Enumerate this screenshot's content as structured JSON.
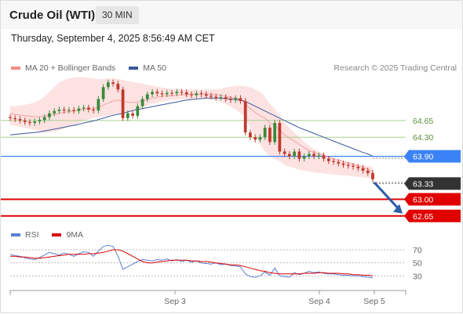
{
  "header": {
    "title": "Crude Oil (WTI)",
    "timeframe": "30 MIN",
    "timestamp": "Thursday, September 4, 2025 8:56:49 AM CET"
  },
  "legend": {
    "ma20_label": "MA 20 + Bollinger Bands",
    "ma50_label": "MA 50",
    "credit": "Research © 2025 Trading Central"
  },
  "colors": {
    "bullish": "#3a8a3a",
    "bearish": "#c0392b",
    "bollinger_fill": "#fde2e2",
    "ma20": "#f4a3a3",
    "ma50": "#3a5a9c",
    "resistance": "#a8cf8e",
    "pivot": "#3b82f6",
    "support": "#e00000",
    "last_price": "#333333",
    "arrow": "#2b5ca8",
    "rsi": "#5b7fd6",
    "rsi_ma": "#dd0000"
  },
  "chart_data": [
    {
      "type": "candlestick",
      "title": "Crude Oil (WTI)",
      "timeframe": "30 MIN",
      "x_ticks": [
        "Sep 3",
        "Sep 4",
        "Sep 5"
      ],
      "ylim": [
        62.4,
        65.65
      ],
      "closes": [
        64.7,
        64.68,
        64.65,
        64.62,
        64.6,
        64.63,
        64.66,
        64.72,
        64.8,
        64.85,
        64.88,
        64.86,
        64.87,
        64.85,
        64.9,
        64.92,
        64.88,
        64.86,
        65.1,
        65.35,
        65.45,
        65.42,
        65.3,
        64.7,
        64.8,
        64.75,
        64.95,
        65.1,
        65.2,
        65.25,
        65.22,
        65.2,
        65.23,
        65.22,
        65.25,
        65.24,
        65.2,
        65.18,
        65.22,
        65.2,
        65.17,
        65.15,
        65.13,
        65.14,
        65.1,
        65.08,
        65.12,
        65.06,
        64.4,
        64.3,
        64.25,
        64.3,
        64.5,
        64.2,
        64.6,
        64.0,
        63.95,
        63.9,
        64.0,
        63.85,
        63.9,
        63.95,
        63.9,
        63.92,
        63.85,
        63.8,
        63.78,
        63.75,
        63.72,
        63.7,
        63.68,
        63.65,
        63.6,
        63.55,
        63.42
      ],
      "ma20": [
        64.8,
        64.78,
        64.76,
        64.75,
        64.74,
        64.73,
        64.73,
        64.74,
        64.76,
        64.78,
        64.8,
        64.82,
        64.84,
        64.85,
        64.87,
        64.89,
        64.9,
        64.9,
        64.93,
        64.97,
        65.02,
        65.06,
        65.08,
        65.05,
        65.04,
        65.03,
        65.04,
        65.06,
        65.09,
        65.12,
        65.14,
        65.16,
        65.17,
        65.17,
        65.18,
        65.19,
        65.19,
        65.2,
        65.2,
        65.21,
        65.21,
        65.2,
        65.19,
        65.18,
        65.16,
        65.14,
        65.12,
        65.1,
        65.0,
        64.9,
        64.82,
        64.75,
        64.7,
        64.6,
        64.55,
        64.45,
        64.35,
        64.28,
        64.22,
        64.15,
        64.08,
        64.02,
        63.98,
        63.95,
        63.92,
        63.88,
        63.85,
        63.82,
        63.79,
        63.76,
        63.73,
        63.7,
        63.67,
        63.63,
        63.58
      ],
      "ma50": [
        64.35,
        64.36,
        64.37,
        64.38,
        64.39,
        64.4,
        64.41,
        64.43,
        64.45,
        64.47,
        64.49,
        64.51,
        64.53,
        64.55,
        64.57,
        64.6,
        64.62,
        64.64,
        64.67,
        64.7,
        64.73,
        64.76,
        64.78,
        64.8,
        64.83,
        64.86,
        64.88,
        64.9,
        64.92,
        64.94,
        64.96,
        64.98,
        65.0,
        65.02,
        65.04,
        65.06,
        65.08,
        65.09,
        65.1,
        65.11,
        65.12,
        65.12,
        65.12,
        65.12,
        65.11,
        65.1,
        65.09,
        65.08,
        65.05,
        65.0,
        64.95,
        64.9,
        64.85,
        64.8,
        64.75,
        64.7,
        64.65,
        64.6,
        64.55,
        64.5,
        64.46,
        64.42,
        64.38,
        64.34,
        64.3,
        64.26,
        64.22,
        64.18,
        64.14,
        64.1,
        64.06,
        64.02,
        63.98,
        63.95,
        63.9
      ],
      "bb_upper": [
        64.95,
        64.95,
        64.96,
        64.98,
        65.0,
        65.03,
        65.08,
        65.15,
        65.25,
        65.35,
        65.45,
        65.5,
        65.53,
        65.55,
        65.56,
        65.56,
        65.55,
        65.53,
        65.52,
        65.52,
        65.53,
        65.53,
        65.52,
        65.5,
        65.48,
        65.46,
        65.44,
        65.42,
        65.4,
        65.38,
        65.36,
        65.34,
        65.33,
        65.32,
        65.32,
        65.31,
        65.31,
        65.3,
        65.3,
        65.3,
        65.3,
        65.3,
        65.31,
        65.32,
        65.34,
        65.36,
        65.38,
        65.38,
        65.37,
        65.35,
        65.3,
        65.25,
        65.15,
        65.0,
        64.9,
        64.75,
        64.6,
        64.5,
        64.4,
        64.3,
        64.2,
        64.12,
        64.05,
        64.0,
        63.95,
        63.9,
        63.85,
        63.82,
        63.8,
        63.78,
        63.76,
        63.74,
        63.72,
        63.7,
        63.68
      ],
      "bb_lower": [
        64.55,
        64.54,
        64.52,
        64.5,
        64.48,
        64.45,
        64.42,
        64.4,
        64.4,
        64.42,
        64.44,
        64.48,
        64.52,
        64.55,
        64.6,
        64.65,
        64.68,
        64.7,
        64.72,
        64.74,
        64.75,
        64.78,
        64.8,
        64.8,
        64.82,
        64.85,
        64.88,
        64.92,
        64.96,
        65.0,
        65.02,
        65.05,
        65.07,
        65.08,
        65.09,
        65.1,
        65.1,
        65.1,
        65.1,
        65.1,
        65.1,
        65.1,
        65.07,
        65.04,
        65.0,
        64.94,
        64.88,
        64.82,
        64.7,
        64.5,
        64.3,
        64.15,
        64.0,
        63.9,
        63.85,
        63.8,
        63.72,
        63.68,
        63.65,
        63.62,
        63.6,
        63.58,
        63.56,
        63.55,
        63.54,
        63.53,
        63.52,
        63.51,
        63.5,
        63.49,
        63.48,
        63.47,
        63.46,
        63.45,
        63.44
      ],
      "levels": [
        {
          "label": "64.65",
          "value": 64.65,
          "kind": "resistance"
        },
        {
          "label": "64.30",
          "value": 64.3,
          "kind": "resistance"
        },
        {
          "label": "63.90",
          "value": 63.9,
          "kind": "pivot"
        },
        {
          "label": "63.33",
          "value": 63.33,
          "kind": "last"
        },
        {
          "label": "63.00",
          "value": 63.0,
          "kind": "support"
        },
        {
          "label": "62.65",
          "value": 62.65,
          "kind": "support"
        }
      ],
      "forecast_arrow": {
        "from": 63.35,
        "to": 62.75
      }
    },
    {
      "type": "line",
      "series": [
        {
          "name": "RSI",
          "values": [
            63,
            61,
            60,
            58,
            56,
            55,
            58,
            62,
            66,
            64,
            62,
            65,
            63,
            60,
            64,
            67,
            66,
            60,
            68,
            75,
            77,
            75,
            60,
            40,
            44,
            48,
            52,
            55,
            54,
            53,
            55,
            54,
            56,
            53,
            55,
            52,
            54,
            51,
            53,
            50,
            49,
            48,
            50,
            47,
            48,
            46,
            45,
            44,
            33,
            29,
            28,
            30,
            36,
            31,
            42,
            30,
            29,
            28,
            35,
            32,
            34,
            37,
            35,
            36,
            34,
            33,
            33,
            32,
            31,
            31,
            30,
            30,
            29,
            28,
            27
          ]
        },
        {
          "name": "9MA",
          "values": [
            60,
            60,
            59,
            59,
            58,
            57,
            57,
            58,
            59,
            60,
            61,
            62,
            63,
            63,
            63,
            63,
            64,
            64,
            65,
            66,
            68,
            70,
            70,
            68,
            64,
            60,
            56,
            52,
            50,
            50,
            51,
            52,
            53,
            54,
            54,
            54,
            54,
            53,
            53,
            52,
            52,
            51,
            50,
            49,
            48,
            47,
            47,
            46,
            44,
            42,
            40,
            38,
            37,
            35,
            34,
            33,
            33,
            33,
            33,
            33,
            34,
            34,
            34,
            35,
            35,
            34,
            34,
            34,
            33,
            33,
            32,
            32,
            31,
            31,
            30
          ]
        }
      ],
      "y_ticks": [
        "70",
        "50",
        "30"
      ],
      "ylim": [
        10,
        82
      ]
    }
  ],
  "rsi_panel": {
    "rsi_label": "RSI",
    "ma_label": "9MA"
  }
}
